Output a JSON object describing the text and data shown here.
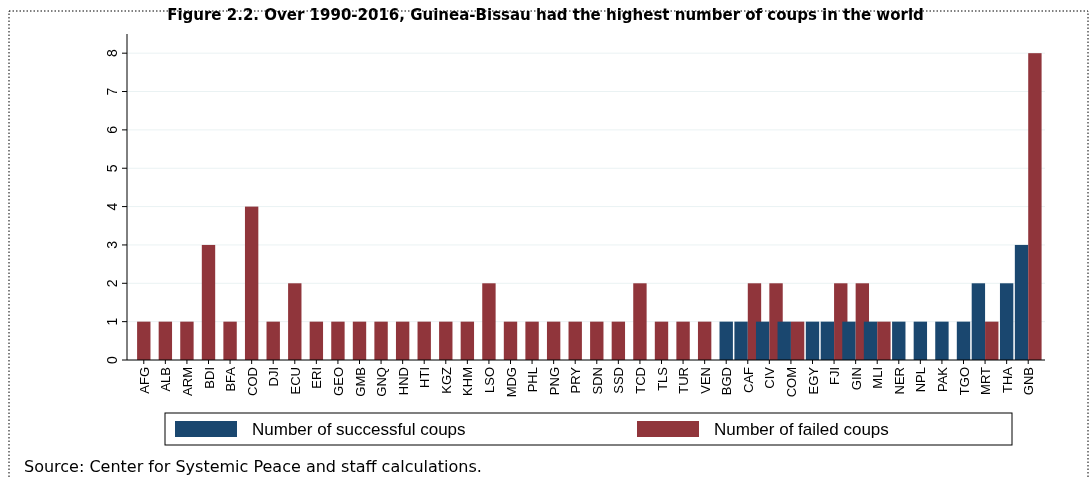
{
  "chart_data": {
    "type": "bar",
    "title": "Figure 2.2. Over 1990-2016, Guinea-Bissau had the highest number of coups in the world",
    "categories": [
      "AFG",
      "ALB",
      "ARM",
      "BDI",
      "BFA",
      "COD",
      "DJI",
      "ECU",
      "ERI",
      "GEO",
      "GMB",
      "GNQ",
      "HND",
      "HTI",
      "KGZ",
      "KHM",
      "LSO",
      "MDG",
      "PHL",
      "PNG",
      "PRY",
      "SDN",
      "SSD",
      "TCD",
      "TLS",
      "TUR",
      "VEN",
      "BGD",
      "CAF",
      "CIV",
      "COM",
      "EGY",
      "FJI",
      "GIN",
      "MLI",
      "NER",
      "NPL",
      "PAK",
      "TGO",
      "MRT",
      "THA",
      "GNB"
    ],
    "series": [
      {
        "name": "Number of successful coups",
        "color": "#1a476f",
        "values": [
          null,
          null,
          null,
          null,
          null,
          null,
          null,
          null,
          null,
          null,
          null,
          null,
          null,
          null,
          null,
          null,
          null,
          null,
          null,
          null,
          null,
          null,
          null,
          null,
          null,
          null,
          null,
          1,
          1,
          1,
          1,
          1,
          1,
          1,
          1,
          1,
          1,
          1,
          1,
          2,
          2,
          3
        ]
      },
      {
        "name": "Number of failed coups",
        "color": "#90353b",
        "values": [
          1,
          1,
          1,
          3,
          1,
          4,
          1,
          2,
          1,
          1,
          1,
          1,
          1,
          1,
          1,
          1,
          2,
          1,
          1,
          1,
          1,
          1,
          1,
          2,
          1,
          1,
          1,
          null,
          2,
          2,
          1,
          null,
          2,
          2,
          1,
          null,
          null,
          null,
          null,
          1,
          null,
          8
        ]
      }
    ],
    "ylim": [
      0,
      8.5
    ],
    "yticks": [
      0,
      1,
      2,
      3,
      4,
      5,
      6,
      7,
      8
    ],
    "grid": "y",
    "legend": "bottom",
    "annotations": [
      "Source: Center for Systemic  Peace and staff calculations."
    ]
  }
}
